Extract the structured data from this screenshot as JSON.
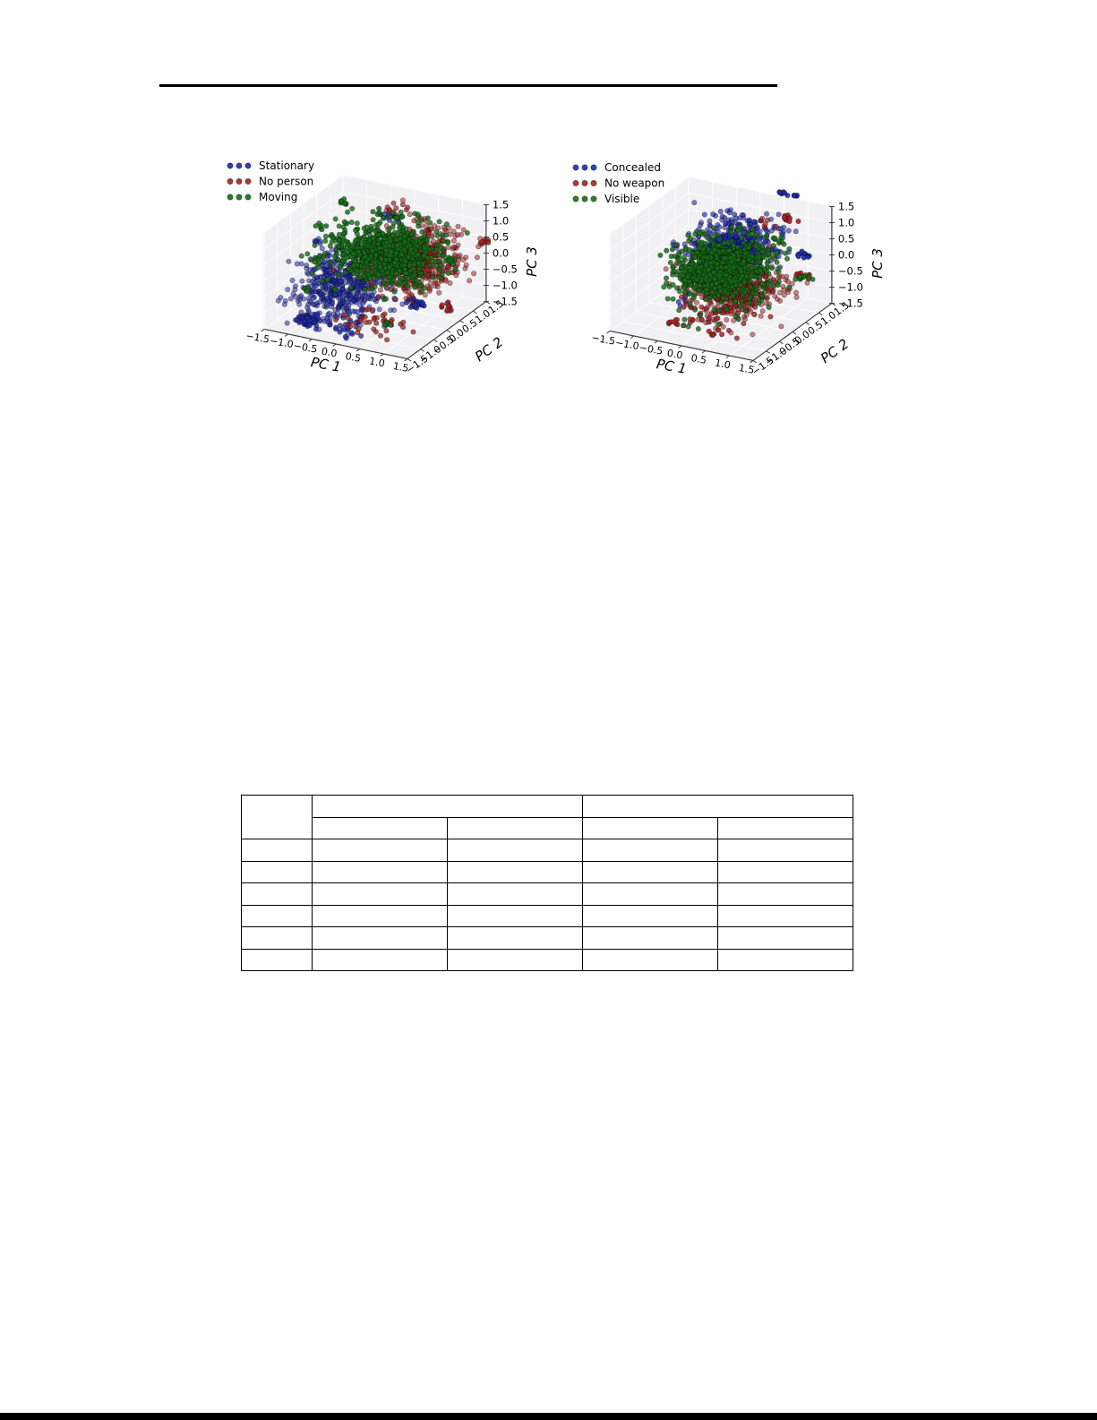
{
  "page": {
    "background": "#ffffff",
    "top_rule_color": "#000000",
    "bottom_bar_color": "#000000"
  },
  "chart_data": [
    {
      "id": "pca-scatter-motion",
      "type": "scatter",
      "projection": "3d",
      "xlabel": "PC 1",
      "ylabel": "PC 2",
      "zlabel": "PC 3",
      "xlim": [
        -1.5,
        1.5
      ],
      "ylim": [
        -1.5,
        1.5
      ],
      "zlim": [
        -1.5,
        1.5
      ],
      "tick_values": [
        -1.5,
        -1.0,
        -0.5,
        0.0,
        0.5,
        1.0,
        1.5
      ],
      "tick_labels": [
        "−1.5",
        "−1.0",
        "−0.5",
        "0.0",
        "0.5",
        "1.0",
        "1.5"
      ],
      "grid": true,
      "legend_position": "upper-left",
      "legend": [
        {
          "label": "Stationary",
          "color": "#202aa8"
        },
        {
          "label": "No person",
          "color": "#a32222"
        },
        {
          "label": "Moving",
          "color": "#176d17"
        }
      ],
      "series": [
        {
          "name": "Stationary",
          "color": "#202aa8",
          "clusters": [
            {
              "center": [
                -0.45,
                -0.45,
                -0.5
              ],
              "spread": [
                0.42,
                0.42,
                0.45
              ],
              "n": 480,
              "alpha": 0.55,
              "seed": 11
            },
            {
              "center": [
                -0.73,
                -1.2,
                -1.15
              ],
              "spread": [
                0.1,
                0.08,
                0.08
              ],
              "n": 70,
              "alpha": 0.8,
              "seed": 12
            },
            {
              "center": [
                0.6,
                0.5,
                -1.25
              ],
              "spread": [
                0.08,
                0.06,
                0.06
              ],
              "n": 28,
              "alpha": 0.85,
              "seed": 13
            },
            {
              "center": [
                0.1,
                0.45,
                1.3
              ],
              "spread": [
                0.12,
                0.07,
                0.09
              ],
              "n": 14,
              "alpha": 0.7,
              "seed": 14
            },
            {
              "center": [
                -1.1,
                -0.2,
                0.6
              ],
              "spread": [
                0.06,
                0.05,
                0.05
              ],
              "n": 6,
              "alpha": 0.55,
              "seed": 15
            },
            {
              "center": [
                -0.2,
                -1.0,
                -1.3
              ],
              "spread": [
                0.3,
                0.18,
                0.1
              ],
              "n": 26,
              "alpha": 0.75,
              "seed": 16
            }
          ]
        },
        {
          "name": "No person",
          "color": "#a32222",
          "clusters": [
            {
              "center": [
                0.55,
                0.4,
                0.15
              ],
              "spread": [
                0.45,
                0.5,
                0.4
              ],
              "n": 620,
              "alpha": 0.55,
              "seed": 21
            },
            {
              "center": [
                1.55,
                1.45,
                0.42
              ],
              "spread": [
                0.06,
                0.05,
                0.05
              ],
              "n": 9,
              "alpha": 0.85,
              "seed": 22
            },
            {
              "center": [
                1.3,
                0.4,
                -1.1
              ],
              "spread": [
                0.08,
                0.05,
                0.06
              ],
              "n": 12,
              "alpha": 0.85,
              "seed": 23
            },
            {
              "center": [
                0.15,
                0.7,
                1.35
              ],
              "spread": [
                0.3,
                0.12,
                0.08
              ],
              "n": 10,
              "alpha": 0.7,
              "seed": 24
            },
            {
              "center": [
                0.3,
                -0.6,
                -1.25
              ],
              "spread": [
                0.35,
                0.25,
                0.12
              ],
              "n": 38,
              "alpha": 0.75,
              "seed": 25
            }
          ]
        },
        {
          "name": "Moving",
          "color": "#176d17",
          "clusters": [
            {
              "center": [
                0.1,
                0.25,
                0.3
              ],
              "spread": [
                0.5,
                0.5,
                0.34
              ],
              "n": 760,
              "alpha": 0.8,
              "seed": 31
            },
            {
              "center": [
                -1.15,
                0.9,
                1.1
              ],
              "spread": [
                0.12,
                0.05,
                0.05
              ],
              "n": 7,
              "alpha": 0.85,
              "seed": 32
            },
            {
              "center": [
                -1.35,
                0.4,
                0.55
              ],
              "spread": [
                0.06,
                0.05,
                0.05
              ],
              "n": 5,
              "alpha": 0.85,
              "seed": 33
            },
            {
              "center": [
                -1.0,
                -0.35,
                0.15
              ],
              "spread": [
                0.06,
                0.05,
                0.05
              ],
              "n": 5,
              "alpha": 0.85,
              "seed": 34
            },
            {
              "center": [
                -0.9,
                -0.95,
                -0.4
              ],
              "spread": [
                0.06,
                0.05,
                0.05
              ],
              "n": 4,
              "alpha": 0.85,
              "seed": 35
            },
            {
              "center": [
                0.95,
                1.05,
                -0.15
              ],
              "spread": [
                0.1,
                0.07,
                0.07
              ],
              "n": 8,
              "alpha": 0.85,
              "seed": 36
            },
            {
              "center": [
                0.6,
                -0.7,
                -1.15
              ],
              "spread": [
                0.06,
                0.05,
                0.05
              ],
              "n": 4,
              "alpha": 0.85,
              "seed": 37
            },
            {
              "center": [
                -0.5,
                0.95,
                0.95
              ],
              "spread": [
                0.05,
                0.05,
                0.05
              ],
              "n": 4,
              "alpha": 0.85,
              "seed": 38
            }
          ]
        }
      ]
    },
    {
      "id": "pca-scatter-weapon",
      "type": "scatter",
      "projection": "3d",
      "xlabel": "PC 1",
      "ylabel": "PC 2",
      "zlabel": "PC 3",
      "xlim": [
        -1.5,
        1.5
      ],
      "ylim": [
        -1.5,
        1.5
      ],
      "zlim": [
        -1.5,
        1.5
      ],
      "tick_values": [
        -1.5,
        -1.0,
        -0.5,
        0.0,
        0.5,
        1.0,
        1.5
      ],
      "tick_labels": [
        "−1.5",
        "−1.0",
        "−0.5",
        "0.0",
        "0.5",
        "1.0",
        "1.5"
      ],
      "grid": true,
      "legend_position": "upper-left",
      "legend": [
        {
          "label": "Concealed",
          "color": "#202aa8"
        },
        {
          "label": "No weapon",
          "color": "#a32222"
        },
        {
          "label": "Visible",
          "color": "#176d17"
        }
      ],
      "series": [
        {
          "name": "Concealed",
          "color": "#202aa8",
          "clusters": [
            {
              "center": [
                0.15,
                0.3,
                0.6
              ],
              "spread": [
                0.4,
                0.42,
                0.3
              ],
              "n": 430,
              "alpha": 0.6,
              "seed": 41
            },
            {
              "center": [
                0.75,
                1.3,
                1.75
              ],
              "spread": [
                0.14,
                0.04,
                0.03
              ],
              "n": 12,
              "alpha": 0.9,
              "seed": 42
            },
            {
              "center": [
                1.05,
                1.15,
                0.1
              ],
              "spread": [
                0.07,
                0.05,
                0.05
              ],
              "n": 12,
              "alpha": 0.9,
              "seed": 43
            },
            {
              "center": [
                -1.05,
                0.1,
                0.4
              ],
              "spread": [
                0.07,
                0.05,
                0.05
              ],
              "n": 5,
              "alpha": 0.55,
              "seed": 44
            },
            {
              "center": [
                -0.55,
                -0.4,
                -0.95
              ],
              "spread": [
                0.09,
                0.06,
                0.06
              ],
              "n": 5,
              "alpha": 0.7,
              "seed": 45
            },
            {
              "center": [
                -0.15,
                0.5,
                1.2
              ],
              "spread": [
                0.28,
                0.15,
                0.12
              ],
              "n": 16,
              "alpha": 0.65,
              "seed": 46
            }
          ]
        },
        {
          "name": "No weapon",
          "color": "#a32222",
          "clusters": [
            {
              "center": [
                0.2,
                0.1,
                -0.6
              ],
              "spread": [
                0.42,
                0.45,
                0.35
              ],
              "n": 600,
              "alpha": 0.55,
              "seed": 51
            },
            {
              "center": [
                0.75,
                1.25,
                1.05
              ],
              "spread": [
                0.08,
                0.05,
                0.05
              ],
              "n": 10,
              "alpha": 0.9,
              "seed": 52
            },
            {
              "center": [
                1.12,
                1.08,
                -0.5
              ],
              "spread": [
                0.08,
                0.05,
                0.05
              ],
              "n": 10,
              "alpha": 0.9,
              "seed": 53
            },
            {
              "center": [
                0.0,
                -0.4,
                -1.25
              ],
              "spread": [
                0.38,
                0.3,
                0.12
              ],
              "n": 34,
              "alpha": 0.8,
              "seed": 54
            },
            {
              "center": [
                -0.55,
                -0.75,
                -1.35
              ],
              "spread": [
                0.07,
                0.05,
                0.04
              ],
              "n": 6,
              "alpha": 0.85,
              "seed": 55
            },
            {
              "center": [
                0.35,
                -0.9,
                -1.4
              ],
              "spread": [
                0.06,
                0.05,
                0.04
              ],
              "n": 6,
              "alpha": 0.85,
              "seed": 56
            },
            {
              "center": [
                0.5,
                0.8,
                1.15
              ],
              "spread": [
                0.15,
                0.1,
                0.1
              ],
              "n": 6,
              "alpha": 0.7,
              "seed": 57
            }
          ]
        },
        {
          "name": "Visible",
          "color": "#176d17",
          "clusters": [
            {
              "center": [
                0.0,
                0.05,
                -0.05
              ],
              "spread": [
                0.42,
                0.45,
                0.38
              ],
              "n": 800,
              "alpha": 0.8,
              "seed": 61
            },
            {
              "center": [
                0.6,
                1.1,
                0.35
              ],
              "spread": [
                0.1,
                0.06,
                0.28
              ],
              "n": 10,
              "alpha": 0.85,
              "seed": 62
            },
            {
              "center": [
                1.1,
                1.12,
                -0.62
              ],
              "spread": [
                0.07,
                0.05,
                0.05
              ],
              "n": 8,
              "alpha": 0.85,
              "seed": 63
            },
            {
              "center": [
                -1.15,
                0.1,
                0.05
              ],
              "spread": [
                0.06,
                0.05,
                0.05
              ],
              "n": 4,
              "alpha": 0.85,
              "seed": 64
            },
            {
              "center": [
                -0.75,
                0.55,
                0.55
              ],
              "spread": [
                0.05,
                0.04,
                0.04
              ],
              "n": 3,
              "alpha": 0.85,
              "seed": 65
            },
            {
              "center": [
                0.1,
                -0.55,
                -1.15
              ],
              "spread": [
                0.25,
                0.2,
                0.15
              ],
              "n": 10,
              "alpha": 0.8,
              "seed": 66
            }
          ]
        }
      ]
    }
  ],
  "table": {
    "corner_cell": "",
    "group_headers": [
      "",
      ""
    ],
    "sub_headers": [
      "",
      "",
      "",
      ""
    ],
    "rows": [
      [
        "",
        "",
        "",
        "",
        ""
      ],
      [
        "",
        "",
        "",
        "",
        ""
      ],
      [
        "",
        "",
        "",
        "",
        ""
      ],
      [
        "",
        "",
        "",
        "",
        ""
      ],
      [
        "",
        "",
        "",
        "",
        ""
      ],
      [
        "",
        "",
        "",
        "",
        ""
      ]
    ]
  }
}
